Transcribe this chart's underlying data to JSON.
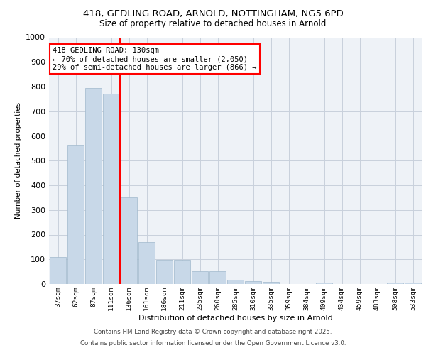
{
  "title_line1": "418, GEDLING ROAD, ARNOLD, NOTTINGHAM, NG5 6PD",
  "title_line2": "Size of property relative to detached houses in Arnold",
  "xlabel": "Distribution of detached houses by size in Arnold",
  "ylabel": "Number of detached properties",
  "categories": [
    "37sqm",
    "62sqm",
    "87sqm",
    "111sqm",
    "136sqm",
    "161sqm",
    "186sqm",
    "211sqm",
    "235sqm",
    "260sqm",
    "285sqm",
    "310sqm",
    "335sqm",
    "359sqm",
    "384sqm",
    "409sqm",
    "434sqm",
    "459sqm",
    "483sqm",
    "508sqm",
    "533sqm"
  ],
  "values": [
    110,
    565,
    795,
    770,
    350,
    170,
    97,
    97,
    53,
    53,
    18,
    12,
    10,
    0,
    0,
    7,
    0,
    0,
    0,
    7,
    7
  ],
  "bar_color": "#c8d8e8",
  "bar_edge_color": "#a0b8cc",
  "ref_line_color": "red",
  "annotation_text": "418 GEDLING ROAD: 130sqm\n← 70% of detached houses are smaller (2,050)\n29% of semi-detached houses are larger (866) →",
  "ylim": [
    0,
    1000
  ],
  "yticks": [
    0,
    100,
    200,
    300,
    400,
    500,
    600,
    700,
    800,
    900,
    1000
  ],
  "footer_line1": "Contains HM Land Registry data © Crown copyright and database right 2025.",
  "footer_line2": "Contains public sector information licensed under the Open Government Licence v3.0.",
  "background_color": "#eef2f7",
  "grid_color": "#c8d0dc"
}
